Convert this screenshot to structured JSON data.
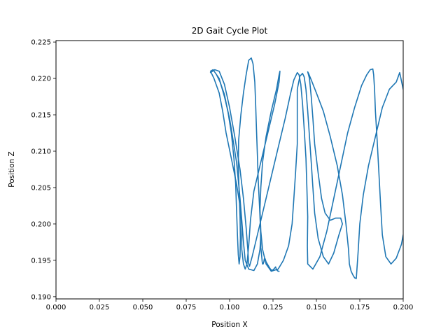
{
  "chart_data": {
    "type": "line",
    "title": "2D Gait Cycle Plot",
    "xlabel": "Position X",
    "ylabel": "Position Z",
    "xlim": [
      0.0,
      0.2
    ],
    "ylim": [
      0.1897,
      0.2252
    ],
    "xticks": [
      "0.000",
      "0.025",
      "0.050",
      "0.075",
      "0.100",
      "0.125",
      "0.150",
      "0.175",
      "0.200"
    ],
    "xtick_values": [
      0.0,
      0.025,
      0.05,
      0.075,
      0.1,
      0.125,
      0.15,
      0.175,
      0.2
    ],
    "yticks": [
      "0.190",
      "0.195",
      "0.200",
      "0.205",
      "0.210",
      "0.215",
      "0.220",
      "0.225"
    ],
    "ytick_values": [
      0.19,
      0.195,
      0.2,
      0.205,
      0.21,
      0.215,
      0.22,
      0.225
    ],
    "grid": false,
    "series": [
      {
        "color": "#1f77b4",
        "x": [
          0.118,
          0.1175,
          0.116,
          0.114,
          0.111,
          0.109,
          0.108,
          0.107,
          0.106,
          0.105,
          0.104,
          0.102,
          0.1,
          0.097,
          0.094,
          0.0905,
          0.089,
          0.091,
          0.094,
          0.096,
          0.098,
          0.101,
          0.104,
          0.106,
          0.107,
          0.107,
          0.108,
          0.109,
          0.11,
          0.111,
          0.112,
          0.114,
          0.118,
          0.122,
          0.126,
          0.1285,
          0.129,
          0.1285,
          0.127,
          0.124,
          0.121,
          0.119,
          0.118,
          0.1175,
          0.118,
          0.119,
          0.121,
          0.124,
          0.128,
          0.131,
          0.134,
          0.136,
          0.137,
          0.138,
          0.139,
          0.139,
          0.139,
          0.1405,
          0.142,
          0.143,
          0.144,
          0.145,
          0.146,
          0.147,
          0.148,
          0.149,
          0.151,
          0.154,
          0.157,
          0.16,
          0.163,
          0.165,
          0.164,
          0.161,
          0.158,
          0.155,
          0.153,
          0.151,
          0.149,
          0.148,
          0.147,
          0.146,
          0.145,
          0.1455,
          0.147,
          0.15,
          0.154,
          0.158,
          0.162,
          0.165,
          0.167,
          0.1685,
          0.169,
          0.17,
          0.171,
          0.172,
          0.173,
          0.174,
          0.175,
          0.177,
          0.18,
          0.184,
          0.188,
          0.192,
          0.196,
          0.198,
          0.2
        ],
        "y": [
          0.1984,
          0.1965,
          0.1945,
          0.1936,
          0.1938,
          0.195,
          0.1975,
          0.2005,
          0.2035,
          0.206,
          0.2085,
          0.2115,
          0.2145,
          0.2175,
          0.22,
          0.2212,
          0.221,
          0.22,
          0.218,
          0.2155,
          0.2125,
          0.209,
          0.2055,
          0.2025,
          0.1995,
          0.1965,
          0.1945,
          0.1938,
          0.1945,
          0.197,
          0.2005,
          0.2045,
          0.2085,
          0.2125,
          0.2165,
          0.2195,
          0.221,
          0.2205,
          0.2185,
          0.2155,
          0.212,
          0.2085,
          0.205,
          0.202,
          0.199,
          0.1965,
          0.1945,
          0.1935,
          0.1938,
          0.195,
          0.197,
          0.2,
          0.2035,
          0.207,
          0.211,
          0.215,
          0.2185,
          0.2203,
          0.2207,
          0.2202,
          0.2185,
          0.2155,
          0.212,
          0.2085,
          0.205,
          0.2015,
          0.198,
          0.1955,
          0.1945,
          0.196,
          0.1985,
          0.2,
          0.2008,
          0.2008,
          0.2005,
          0.2015,
          0.2035,
          0.207,
          0.211,
          0.2145,
          0.2175,
          0.22,
          0.2209,
          0.2207,
          0.2198,
          0.218,
          0.2155,
          0.212,
          0.208,
          0.204,
          0.2,
          0.1965,
          0.1945,
          0.1935,
          0.193,
          0.1926,
          0.1925,
          0.196,
          0.2,
          0.204,
          0.208,
          0.212,
          0.216,
          0.2185,
          0.2195,
          0.2208,
          0.2185
        ]
      },
      {
        "color": "#1f77b4",
        "x": [
          0.089,
          0.0915,
          0.094,
          0.097,
          0.1,
          0.103,
          0.106,
          0.108,
          0.1095,
          0.1105,
          0.111,
          0.1115,
          0.113,
          0.116,
          0.12,
          0.124,
          0.128,
          0.132,
          0.135,
          0.137,
          0.139,
          0.14,
          0.141,
          0.142,
          0.143,
          0.144,
          0.1445,
          0.145,
          0.1448,
          0.145,
          0.148,
          0.152,
          0.156,
          0.16,
          0.164,
          0.168,
          0.172,
          0.176,
          0.179,
          0.181,
          0.1825,
          0.183,
          0.1835,
          0.184,
          0.185,
          0.186,
          0.187,
          0.188,
          0.19,
          0.193,
          0.196,
          0.199,
          0.2
        ],
        "y": [
          0.2208,
          0.2212,
          0.221,
          0.2192,
          0.216,
          0.212,
          0.2075,
          0.2035,
          0.1995,
          0.1965,
          0.1945,
          0.1942,
          0.1955,
          0.1985,
          0.2025,
          0.2065,
          0.2105,
          0.2145,
          0.2178,
          0.2198,
          0.2208,
          0.2205,
          0.2192,
          0.2165,
          0.213,
          0.209,
          0.205,
          0.201,
          0.197,
          0.1945,
          0.1938,
          0.1955,
          0.199,
          0.2035,
          0.208,
          0.2125,
          0.216,
          0.219,
          0.2205,
          0.2212,
          0.2213,
          0.2205,
          0.2185,
          0.2155,
          0.2115,
          0.207,
          0.2025,
          0.1985,
          0.1955,
          0.1945,
          0.1953,
          0.1972,
          0.1985
        ]
      },
      {
        "color": "#1f77b4",
        "x": [
          0.0925,
          0.0945,
          0.097,
          0.099,
          0.101,
          0.1025,
          0.1035,
          0.104,
          0.1045,
          0.105,
          0.1055,
          0.106,
          0.1062,
          0.106,
          0.1055,
          0.105,
          0.1052,
          0.1065,
          0.108,
          0.1095,
          0.111,
          0.1125,
          0.1135,
          0.1145,
          0.115,
          0.1155,
          0.116,
          0.1165,
          0.1172,
          0.1178,
          0.118,
          0.1185,
          0.1188,
          0.119,
          0.1193,
          0.1197,
          0.12,
          0.1205,
          0.121,
          0.1222,
          0.1235,
          0.1245,
          0.1255,
          0.1265,
          0.127,
          0.128,
          0.1283,
          0.1285
        ],
        "y": [
          0.2205,
          0.2195,
          0.2178,
          0.2155,
          0.2125,
          0.209,
          0.2055,
          0.202,
          0.1985,
          0.1958,
          0.1945,
          0.1955,
          0.198,
          0.201,
          0.2045,
          0.208,
          0.2115,
          0.215,
          0.218,
          0.2205,
          0.2225,
          0.2228,
          0.222,
          0.2195,
          0.2165,
          0.213,
          0.2095,
          0.206,
          0.2025,
          0.1995,
          0.1968,
          0.1955,
          0.1948,
          0.1945,
          0.1945,
          0.1948,
          0.1952,
          0.1952,
          0.1948,
          0.1943,
          0.1938,
          0.1936,
          0.1938,
          0.1941,
          0.1937,
          0.1935,
          0.1935,
          0.1935
        ]
      }
    ]
  }
}
